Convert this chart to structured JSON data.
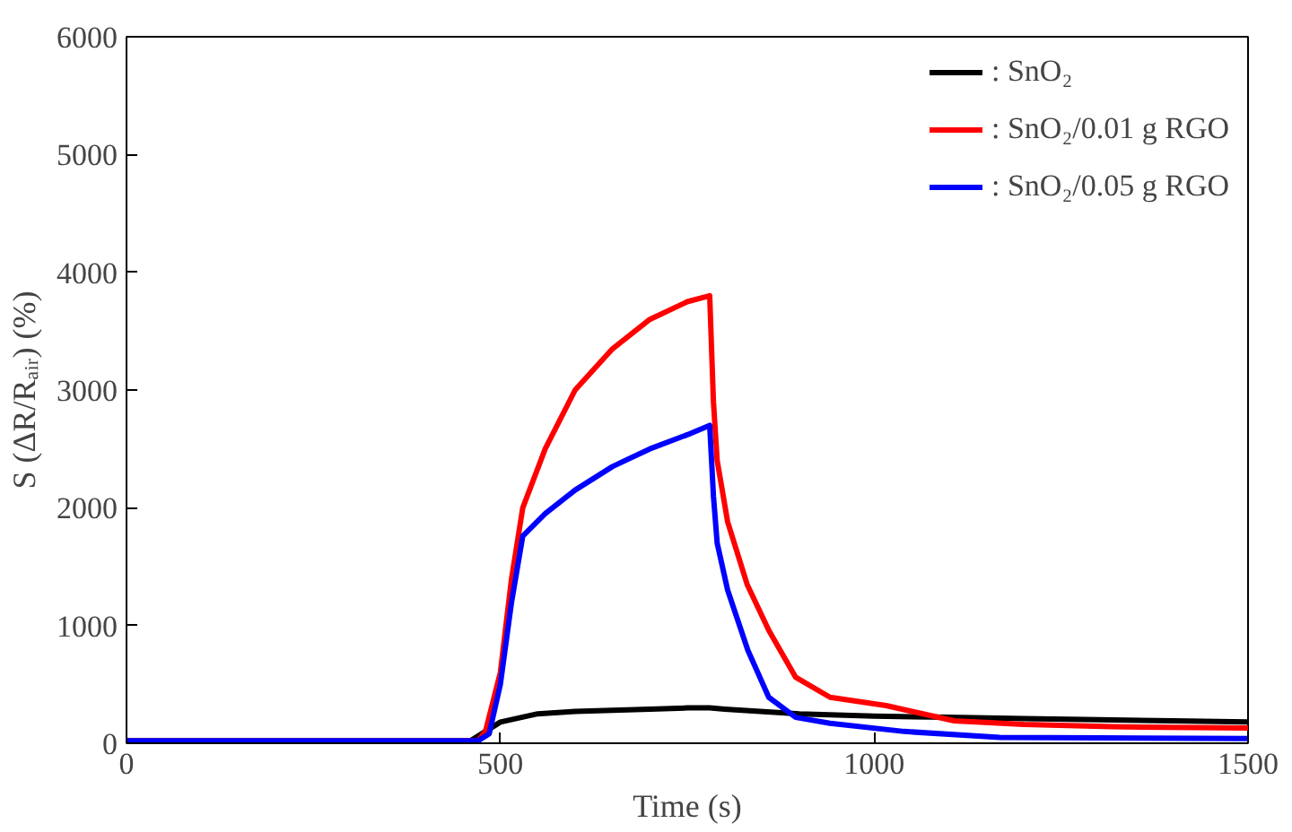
{
  "chart_data": {
    "type": "line",
    "xlabel": "Time (s)",
    "ylabel": "S (ΔR/Rₐᵢᵣ) (%)",
    "xlim": [
      0,
      1500
    ],
    "ylim": [
      0,
      6000
    ],
    "xticks": [
      0,
      500,
      1000,
      1500
    ],
    "yticks": [
      0,
      1000,
      2000,
      3000,
      4000,
      5000,
      6000
    ],
    "grid": false,
    "legend": "top right",
    "marker": "none",
    "line_style": "solid",
    "series": [
      {
        "name": ": SnO₂",
        "color": "#000000",
        "x": [
          0,
          460,
          480,
          500,
          550,
          600,
          650,
          700,
          750,
          780,
          800,
          900,
          1000,
          1100,
          1200,
          1300,
          1400,
          1500
        ],
        "values": [
          20,
          20,
          100,
          180,
          250,
          270,
          280,
          290,
          300,
          300,
          290,
          250,
          230,
          220,
          210,
          200,
          190,
          180
        ]
      },
      {
        "name": ": SnO₂/0.01 g RGO",
        "color": "#ff0000",
        "x": [
          0,
          470,
          480,
          500,
          515,
          530,
          560,
          600,
          650,
          700,
          750,
          780,
          785,
          790,
          804,
          830,
          859,
          895,
          941,
          1016,
          1107,
          1200,
          1318,
          1500
        ],
        "values": [
          20,
          20,
          100,
          600,
          1400,
          2000,
          2500,
          3000,
          3350,
          3600,
          3750,
          3800,
          2900,
          2400,
          1880,
          1350,
          960,
          560,
          390,
          320,
          190,
          160,
          140,
          130
        ]
      },
      {
        "name": ": SnO₂/0.05 g RGO",
        "color": "#0000ff",
        "x": [
          0,
          470,
          485,
          500,
          515,
          530,
          560,
          600,
          650,
          700,
          750,
          780,
          785,
          790,
          804,
          831,
          859,
          895,
          941,
          1040,
          1168,
          1300,
          1500
        ],
        "values": [
          20,
          20,
          80,
          500,
          1200,
          1760,
          1950,
          2150,
          2350,
          2500,
          2620,
          2700,
          2100,
          1700,
          1300,
          790,
          390,
          220,
          170,
          100,
          50,
          45,
          40
        ]
      }
    ]
  }
}
